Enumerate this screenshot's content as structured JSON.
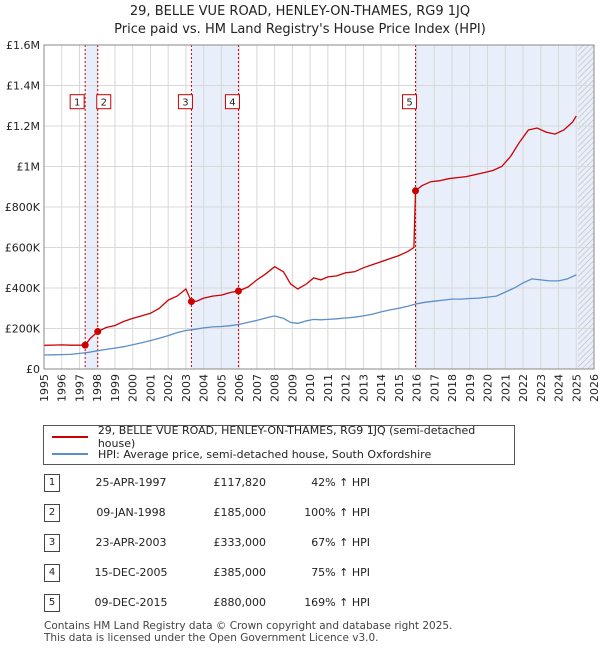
{
  "title": "29, BELLE VUE ROAD, HENLEY-ON-THAMES, RG9 1JQ",
  "subtitle": "Price paid vs. HM Land Registry's House Price Index (HPI)",
  "colors": {
    "property": "#cc0000",
    "hpi": "#5b8fc7",
    "shade": "#e8eefa",
    "grid": "#d8d8d8",
    "marker_line": "#cc0000"
  },
  "chart_data": {
    "type": "line",
    "xlim": [
      1995,
      2026
    ],
    "ylim": [
      0,
      1600000
    ],
    "x_ticks": [
      "1995",
      "1996",
      "1997",
      "1998",
      "1999",
      "2000",
      "2001",
      "2002",
      "2003",
      "2004",
      "2005",
      "2006",
      "2007",
      "2008",
      "2009",
      "2010",
      "2011",
      "2012",
      "2013",
      "2014",
      "2015",
      "2016",
      "2017",
      "2018",
      "2019",
      "2020",
      "2021",
      "2022",
      "2023",
      "2024",
      "2025",
      "2026"
    ],
    "y_ticks": [
      {
        "value": 0,
        "label": "£0"
      },
      {
        "value": 200000,
        "label": "£200K"
      },
      {
        "value": 400000,
        "label": "£400K"
      },
      {
        "value": 600000,
        "label": "£600K"
      },
      {
        "value": 800000,
        "label": "£800K"
      },
      {
        "value": 1000000,
        "label": "£1M"
      },
      {
        "value": 1200000,
        "label": "£1.2M"
      },
      {
        "value": 1400000,
        "label": "£1.4M"
      },
      {
        "value": 1600000,
        "label": "£1.6M"
      }
    ],
    "shaded_ranges": [
      [
        1997.32,
        1998.03
      ],
      [
        2003.31,
        2005.96
      ],
      [
        2015.94,
        2026.0
      ]
    ],
    "hatch_from": 2025.1,
    "series": [
      {
        "name": "29, BELLE VUE ROAD, HENLEY-ON-THAMES, RG9 1JQ (semi-detached house)",
        "x": [
          1995.0,
          1995.5,
          1996.0,
          1996.5,
          1997.0,
          1997.32,
          1997.6,
          1998.03,
          1998.5,
          1999.0,
          1999.5,
          2000.0,
          2000.5,
          2001.0,
          2001.5,
          2002.0,
          2002.5,
          2003.0,
          2003.31,
          2003.6,
          2004.0,
          2004.5,
          2005.0,
          2005.5,
          2005.96,
          2006.5,
          2007.0,
          2007.5,
          2008.0,
          2008.5,
          2008.9,
          2009.3,
          2009.8,
          2010.2,
          2010.6,
          2011.0,
          2011.5,
          2012.0,
          2012.5,
          2013.0,
          2013.5,
          2014.0,
          2014.5,
          2015.0,
          2015.5,
          2015.85,
          2015.94,
          2016.3,
          2016.8,
          2017.3,
          2017.8,
          2018.3,
          2018.8,
          2019.3,
          2019.8,
          2020.3,
          2020.8,
          2021.3,
          2021.8,
          2022.3,
          2022.8,
          2023.3,
          2023.8,
          2024.3,
          2024.8,
          2025.0
        ],
        "y": [
          117000,
          118000,
          119000,
          117500,
          117500,
          117820,
          150000,
          185000,
          205000,
          215000,
          235000,
          250000,
          262000,
          275000,
          300000,
          340000,
          360000,
          395000,
          333000,
          335000,
          350000,
          360000,
          365000,
          378000,
          385000,
          405000,
          440000,
          470000,
          505000,
          480000,
          420000,
          395000,
          420000,
          450000,
          440000,
          455000,
          460000,
          475000,
          480000,
          500000,
          515000,
          530000,
          545000,
          560000,
          580000,
          600000,
          880000,
          905000,
          925000,
          930000,
          940000,
          945000,
          950000,
          960000,
          970000,
          980000,
          1000000,
          1050000,
          1120000,
          1180000,
          1190000,
          1170000,
          1160000,
          1180000,
          1220000,
          1250000
        ]
      },
      {
        "name": "HPI: Average price, semi-detached house, South Oxfordshire",
        "x": [
          1995.0,
          1995.5,
          1996.0,
          1996.5,
          1997.0,
          1997.5,
          1998.0,
          1998.5,
          1999.0,
          1999.5,
          2000.0,
          2000.5,
          2001.0,
          2001.5,
          2002.0,
          2002.5,
          2003.0,
          2003.5,
          2004.0,
          2004.5,
          2005.0,
          2005.5,
          2006.0,
          2006.5,
          2007.0,
          2007.5,
          2008.0,
          2008.5,
          2008.9,
          2009.3,
          2009.8,
          2010.2,
          2010.6,
          2011.0,
          2011.5,
          2012.0,
          2012.5,
          2013.0,
          2013.5,
          2014.0,
          2014.5,
          2015.0,
          2015.5,
          2016.0,
          2016.5,
          2017.0,
          2017.5,
          2018.0,
          2018.5,
          2019.0,
          2019.5,
          2020.0,
          2020.5,
          2021.0,
          2021.5,
          2022.0,
          2022.5,
          2023.0,
          2023.5,
          2024.0,
          2024.5,
          2025.0
        ],
        "y": [
          69000,
          70000,
          71000,
          72000,
          77000,
          82000,
          90000,
          97000,
          103000,
          110000,
          120000,
          130000,
          140000,
          152000,
          165000,
          180000,
          190000,
          196000,
          203000,
          208000,
          210000,
          214000,
          220000,
          230000,
          240000,
          252000,
          262000,
          250000,
          230000,
          225000,
          238000,
          245000,
          243000,
          245000,
          248000,
          252000,
          256000,
          262000,
          270000,
          282000,
          292000,
          300000,
          310000,
          322000,
          330000,
          335000,
          340000,
          345000,
          345000,
          348000,
          350000,
          355000,
          360000,
          380000,
          400000,
          425000,
          445000,
          440000,
          435000,
          435000,
          445000,
          465000
        ]
      }
    ],
    "sales": [
      {
        "n": "1",
        "x": 1997.32,
        "y": 117820
      },
      {
        "n": "2",
        "x": 1998.03,
        "y": 185000
      },
      {
        "n": "3",
        "x": 2003.31,
        "y": 333000
      },
      {
        "n": "4",
        "x": 2005.96,
        "y": 385000
      },
      {
        "n": "5",
        "x": 2015.94,
        "y": 880000
      }
    ],
    "box_label_y": 1320000
  },
  "legend": {
    "property": "29, BELLE VUE ROAD, HENLEY-ON-THAMES, RG9 1JQ (semi-detached house)",
    "hpi": "HPI: Average price, semi-detached house, South Oxfordshire"
  },
  "transactions": [
    {
      "n": "1",
      "date": "25-APR-1997",
      "price": "£117,820",
      "hpi": "42% ↑ HPI"
    },
    {
      "n": "2",
      "date": "09-JAN-1998",
      "price": "£185,000",
      "hpi": "100% ↑ HPI"
    },
    {
      "n": "3",
      "date": "23-APR-2003",
      "price": "£333,000",
      "hpi": "67% ↑ HPI"
    },
    {
      "n": "4",
      "date": "15-DEC-2005",
      "price": "£385,000",
      "hpi": "75% ↑ HPI"
    },
    {
      "n": "5",
      "date": "09-DEC-2015",
      "price": "£880,000",
      "hpi": "169% ↑ HPI"
    }
  ],
  "footer": {
    "line1": "Contains HM Land Registry data © Crown copyright and database right 2025.",
    "line2": "This data is licensed under the Open Government Licence v3.0."
  }
}
